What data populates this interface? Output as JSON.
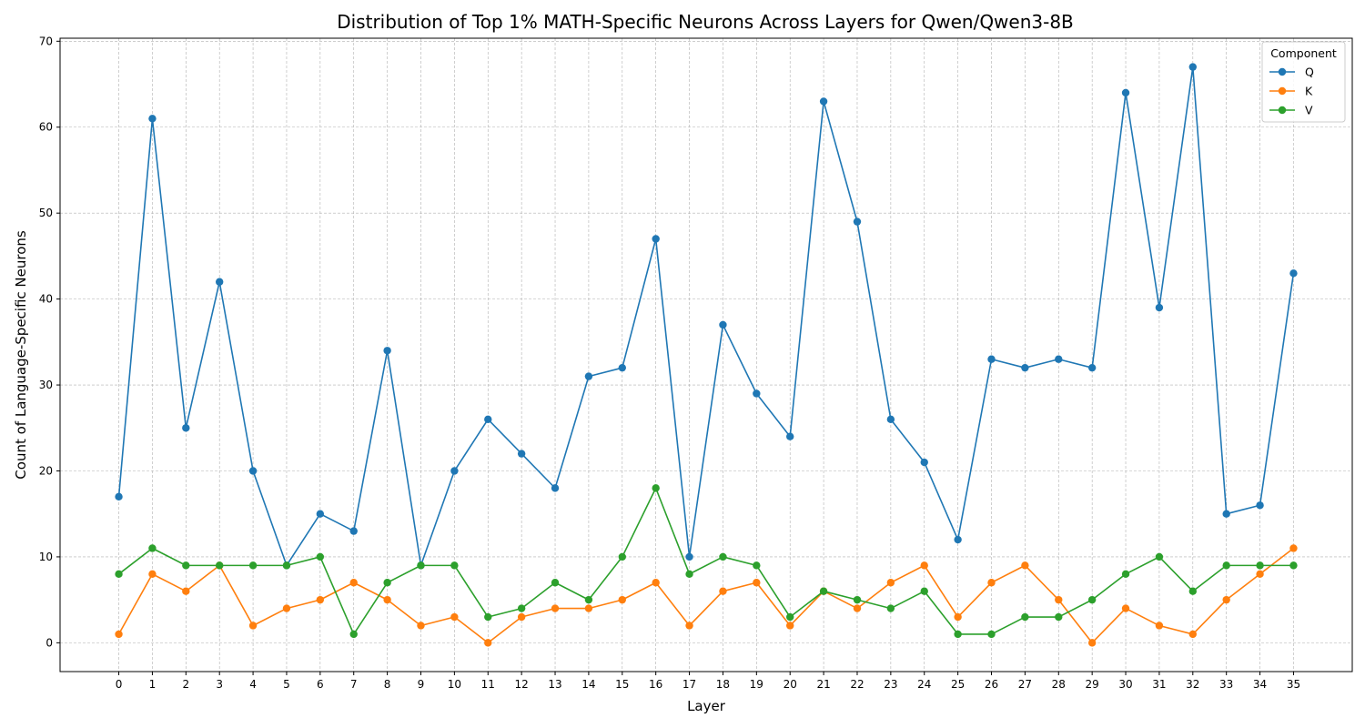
{
  "chart_data": {
    "type": "line",
    "title": "Distribution of Top 1% MATH-Specific Neurons Across Layers for Qwen/Qwen3-8B",
    "xlabel": "Layer",
    "ylabel": "Count of Language-Specific Neurons",
    "x": [
      0,
      1,
      2,
      3,
      4,
      5,
      6,
      7,
      8,
      9,
      10,
      11,
      12,
      13,
      14,
      15,
      16,
      17,
      18,
      19,
      20,
      21,
      22,
      23,
      24,
      25,
      26,
      27,
      28,
      29,
      30,
      31,
      32,
      33,
      34,
      35
    ],
    "xlim": [
      -1.75,
      36.75
    ],
    "ylim": [
      -3.35,
      70.35
    ],
    "yticks": [
      0,
      10,
      20,
      30,
      40,
      50,
      60,
      70
    ],
    "grid": true,
    "legend": {
      "title": "Component",
      "placement": "top-right"
    },
    "series": [
      {
        "name": "Q",
        "color": "#1f77b4",
        "values": [
          17,
          61,
          25,
          42,
          20,
          9,
          15,
          13,
          34,
          9,
          20,
          26,
          22,
          18,
          31,
          32,
          47,
          10,
          37,
          29,
          24,
          63,
          49,
          26,
          21,
          12,
          33,
          32,
          33,
          32,
          64,
          39,
          67,
          15,
          16,
          43
        ]
      },
      {
        "name": "K",
        "color": "#ff7f0e",
        "values": [
          1,
          8,
          6,
          9,
          2,
          4,
          5,
          7,
          5,
          2,
          3,
          0,
          3,
          4,
          4,
          5,
          7,
          2,
          6,
          7,
          2,
          6,
          4,
          7,
          9,
          3,
          7,
          9,
          5,
          0,
          4,
          2,
          1,
          5,
          8,
          11
        ]
      },
      {
        "name": "V",
        "color": "#2ca02c",
        "values": [
          8,
          11,
          9,
          9,
          9,
          9,
          10,
          1,
          7,
          9,
          9,
          3,
          4,
          7,
          5,
          10,
          18,
          8,
          10,
          9,
          3,
          6,
          5,
          4,
          6,
          1,
          1,
          3,
          3,
          5,
          8,
          10,
          6,
          9,
          9,
          9
        ]
      }
    ]
  }
}
